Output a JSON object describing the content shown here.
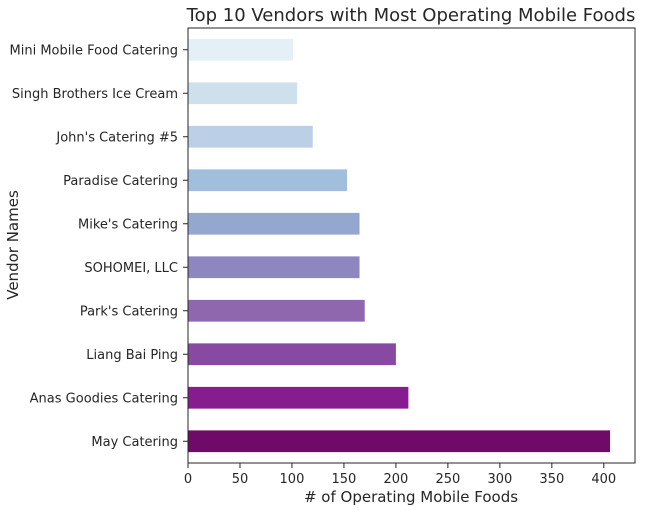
{
  "chart_data": {
    "type": "bar",
    "orientation": "horizontal",
    "title": "Top 10 Vendors with Most Operating Mobile Foods",
    "xlabel": "# of Operating Mobile Foods",
    "ylabel": "Vendor Names",
    "xlim": [
      0,
      430
    ],
    "x_ticks": [
      "0",
      "50",
      "100",
      "150",
      "200",
      "250",
      "300",
      "350",
      "400"
    ],
    "grid": false,
    "categories": [
      "May Catering",
      "Anas Goodies Catering",
      "Liang Bai Ping",
      "Park's Catering",
      "SOHOMEI, LLC",
      "Mike's Catering",
      "Paradise Catering",
      "John's Catering #5",
      "Singh Brothers Ice Cream",
      "Mini Mobile Food Catering"
    ],
    "values": [
      406,
      212,
      200,
      170,
      165,
      165,
      153,
      120,
      105,
      101
    ],
    "colors": [
      "#6f0a68",
      "#861c8d",
      "#8749a2",
      "#8f67af",
      "#8d86bf",
      "#95a6cf",
      "#a1bedc",
      "#bbd0e6",
      "#cfe0ed",
      "#e4eff6"
    ]
  }
}
